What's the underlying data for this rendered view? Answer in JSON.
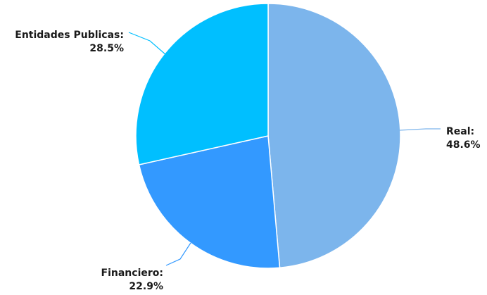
{
  "chart_data": {
    "type": "pie",
    "slices": [
      {
        "name": "Real",
        "value": 48.6,
        "label": "48.6%",
        "color": "#7cb5ec"
      },
      {
        "name": "Financiero",
        "value": 22.9,
        "label": "22.9%",
        "color": "#3399ff"
      },
      {
        "name": "Entidades Publicas",
        "value": 28.5,
        "label": "28.5%",
        "color": "#00bfff"
      }
    ],
    "start_angle": "top, clockwise",
    "legend": "none",
    "label_suffix": ":"
  }
}
